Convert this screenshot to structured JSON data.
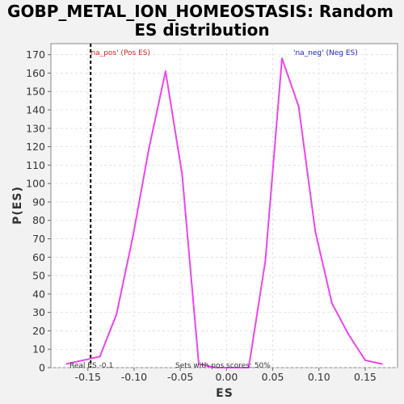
{
  "chart_data": {
    "type": "line",
    "title_line1": "GOBP_METAL_ION_HOMEOSTASIS: Random",
    "title_line2": "ES distribution",
    "xlabel": "ES",
    "ylabel": "P(ES)",
    "xlim": [
      -0.19,
      0.185
    ],
    "ylim": [
      0,
      176
    ],
    "xticks": [
      -0.15,
      -0.1,
      -0.05,
      0.0,
      0.05,
      0.1,
      0.15
    ],
    "xtick_labels": [
      "-0.15",
      "-0.10",
      "-0.05",
      "0.00",
      "0.05",
      "0.10",
      "0.15"
    ],
    "yticks": [
      0,
      10,
      20,
      30,
      40,
      50,
      60,
      70,
      80,
      90,
      100,
      110,
      120,
      130,
      140,
      150,
      160,
      170
    ],
    "ytick_labels": [
      "0",
      "10",
      "20",
      "30",
      "40",
      "50",
      "60",
      "70",
      "80",
      "90",
      "100",
      "110",
      "120",
      "130",
      "140",
      "150",
      "160",
      "170"
    ],
    "grid": true,
    "series": [
      {
        "color": "#ee44ee",
        "points": [
          [
            -0.173,
            2
          ],
          [
            -0.137,
            6
          ],
          [
            -0.119,
            29
          ],
          [
            -0.101,
            72
          ],
          [
            -0.084,
            119
          ],
          [
            -0.066,
            161
          ],
          [
            -0.048,
            105
          ],
          [
            -0.03,
            2
          ],
          [
            -0.012,
            0
          ],
          [
            0.006,
            0
          ],
          [
            0.024,
            0
          ],
          [
            0.042,
            58
          ],
          [
            0.06,
            168
          ],
          [
            0.078,
            142
          ],
          [
            0.096,
            74
          ],
          [
            0.114,
            35
          ],
          [
            0.132,
            18
          ],
          [
            0.15,
            4
          ],
          [
            0.168,
            2
          ]
        ]
      }
    ],
    "real_es": -0.147,
    "annotations": {
      "pos_label": "'na_pos' (Pos ES)",
      "neg_label": "'na_neg' (Neg ES)",
      "real_es_label": "Real ES -0.1",
      "pos_scores_label": "Sets with pos scores: 50%"
    },
    "colors": {
      "line": "#ee44ee",
      "pos_label": "#dd2222",
      "neg_label": "#2222bb",
      "real_es_line": "#000000",
      "plot_bg": "#ffffff",
      "page_bg": "#f2f2f2",
      "grid": "#dddddd"
    }
  }
}
